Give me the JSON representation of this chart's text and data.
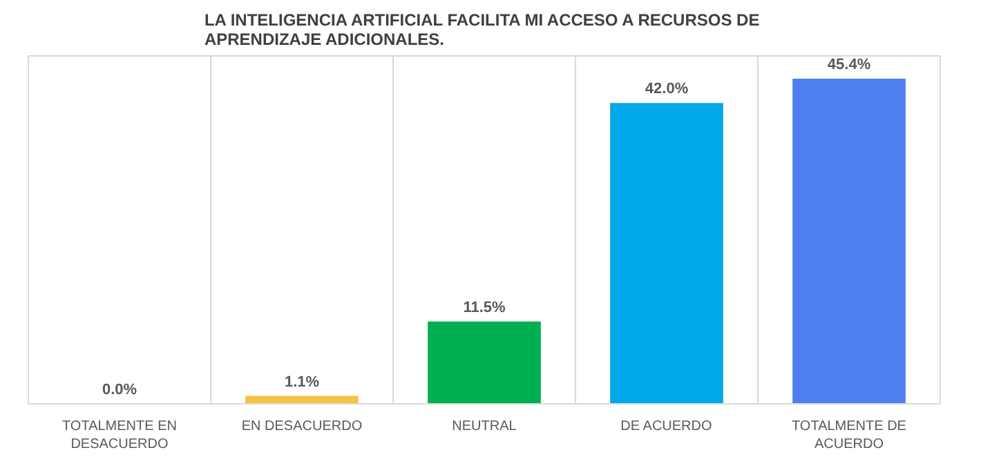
{
  "chart_data": {
    "type": "bar",
    "title": "LA INTELIGENCIA ARTIFICIAL FACILITA MI ACCESO A RECURSOS DE APRENDIZAJE ADICIONALES.",
    "categories": [
      "TOTALMENTE EN DESACUERDO",
      "EN DESACUERDO",
      "NEUTRAL",
      "DE ACUERDO",
      "TOTALMENTE DE ACUERDO"
    ],
    "values": [
      0.0,
      1.1,
      11.5,
      42.0,
      45.4
    ],
    "colors": [
      "#7f7f7f",
      "#f5c342",
      "#00b050",
      "#00a8e8",
      "#4f7ef0"
    ],
    "value_labels": [
      "0.0%",
      "1.1%",
      "11.5%",
      "42.0%",
      "45.4%"
    ],
    "grid": "x"
  }
}
